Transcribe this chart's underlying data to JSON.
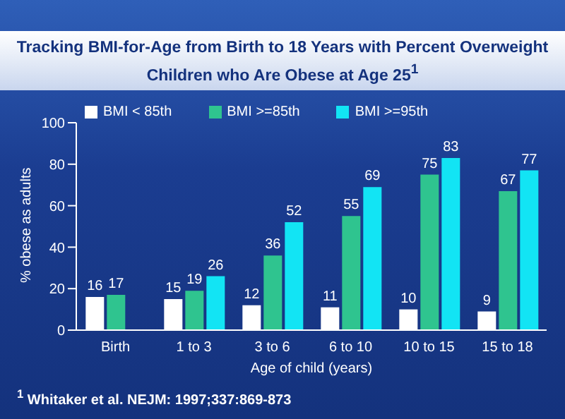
{
  "chart_data": {
    "type": "bar",
    "title": "Tracking BMI-for-Age from Birth to 18 Years with Percent Overweight Children who Are Obese at Age 25$^{1}$",
    "xlabel": "Age of child (years)",
    "ylabel": "% obese as adults",
    "categories": [
      "Birth",
      "1 to 3",
      "3 to 6",
      "6 to 10",
      "10 to 15",
      "15 to 18"
    ],
    "series": [
      {
        "name": "BMI < 85th",
        "color": "#ffffff",
        "values": [
          16,
          15,
          12,
          11,
          10,
          9
        ]
      },
      {
        "name": "BMI >=85th",
        "color": "#2fc48f",
        "values": [
          17,
          19,
          36,
          55,
          75,
          67
        ]
      },
      {
        "name": "BMI >=95th",
        "color": "#12e4f4",
        "values": [
          null,
          26,
          52,
          69,
          83,
          77
        ]
      }
    ],
    "ylim": [
      0,
      100
    ],
    "yticks": [
      0,
      20,
      40,
      60,
      80,
      100
    ],
    "legend": "top left",
    "data_labels": true,
    "annotations": [
      "$^{1}$ Whitaker et al. NEJM: 1997;337:869-873"
    ]
  }
}
